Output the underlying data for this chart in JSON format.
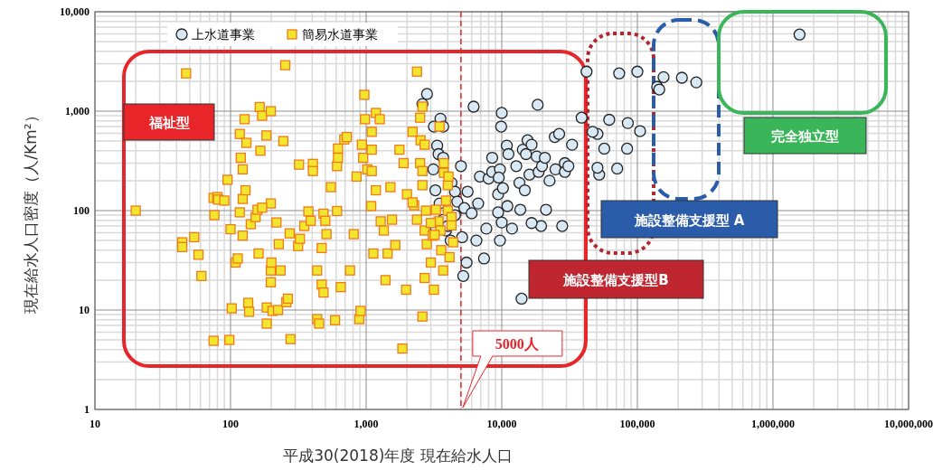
{
  "chart_data": {
    "type": "scatter",
    "xlabel": "平成30(2018)年度 現在給水人口",
    "ylabel": "現在給水人口密度（人/Km²）",
    "log": "xy",
    "grid": true,
    "legend": "top left",
    "xlim": [
      10,
      10000000
    ],
    "ylim": [
      1,
      10000
    ],
    "xticks": [
      {
        "value": 10,
        "label": "10"
      },
      {
        "value": 100,
        "label": "100"
      },
      {
        "value": 1000,
        "label": "1,000"
      },
      {
        "value": 10000,
        "label": "10,000"
      },
      {
        "value": 100000,
        "label": "100,000"
      },
      {
        "value": 1000000,
        "label": "1,000,000"
      },
      {
        "value": 10000000,
        "label": "10,000,000"
      }
    ],
    "yticks": [
      {
        "value": 1,
        "label": "1"
      },
      {
        "value": 10,
        "label": "10"
      },
      {
        "value": 100,
        "label": "100"
      },
      {
        "value": 1000,
        "label": "1,000"
      },
      {
        "value": 10000,
        "label": "10,000"
      }
    ],
    "ref_lines": [
      {
        "axis": "x",
        "value": 5000,
        "label": "5000人",
        "color": "#e8262a",
        "line_style": "dashed"
      }
    ],
    "annotations": [
      "福祉型",
      "施設整備支援型B",
      "施設整備支援型 A",
      "完全独立型"
    ],
    "series": [
      {
        "name": "上水道事業",
        "color": "#d9e8f5",
        "marker": "circle",
        "x": [
          2810,
          2600,
          3530,
          3700,
          3160,
          3340,
          3420,
          3700,
          3130,
          3240,
          3480,
          3700,
          3880,
          4200,
          4000,
          3270,
          4260,
          4520,
          4520,
          4700,
          5100,
          5300,
          5500,
          5200,
          5000,
          5600,
          6000,
          6200,
          6900,
          6700,
          6500,
          7400,
          7700,
          8000,
          8500,
          8500,
          9400,
          9700,
          9400,
          9700,
          9900,
          10000,
          9500,
          10900,
          11200,
          10200,
          11000,
          11900,
          10000,
          13500,
          13700,
          14000,
          12800,
          14300,
          14800,
          15100,
          15500,
          16000,
          16600,
          18100,
          18700,
          19500,
          16600,
          19800,
          20800,
          22500,
          21200,
          24600,
          24900,
          26500,
          29200,
          29200,
          27900,
          31000,
          33000,
          38800,
          42200,
          50800,
          52300,
          62000,
          73400,
          85000,
          104700,
          57000,
          84000,
          50800,
          71000,
          100000,
          140000,
          145000,
          156000,
          213000,
          272000,
          1570000,
          18400,
          46800
        ],
        "values": [
          1490,
          1180,
          840,
          700,
          700,
          450,
          370,
          340,
          260,
          160,
          118,
          81,
          63,
          50,
          70,
          67,
          190,
          90,
          155,
          123,
          54,
          106,
          30,
          22,
          280,
          155,
          94,
          1110,
          220,
          118,
          50,
          33,
          66,
          210,
          340,
          245,
          146,
          260,
          96,
          50,
          700,
          76,
          215,
          450,
          370,
          168,
          111,
          66,
          960,
          190,
          102,
          13,
          280,
          410,
          160,
          370,
          510,
          230,
          460,
          350,
          245,
          70,
          75,
          280,
          340,
          200,
          102,
          550,
          260,
          590,
          300,
          245,
          70,
          280,
          460,
          860,
          2500,
          590,
          230,
          820,
          2400,
          760,
          630,
          420,
          420,
          270,
          265,
          2500,
          1760,
          1650,
          2200,
          2170,
          1950,
          5900,
          1160,
          620
        ]
      },
      {
        "name": "簡易水道事業",
        "color": "#f2e52e",
        "marker": "square",
        "x": [
          20,
          47,
          44,
          44,
          54,
          58,
          61,
          75,
          80,
          76,
          75,
          81,
          90,
          100,
          95,
          98,
          102,
          109,
          117,
          123,
          123,
          113,
          117,
          119,
          131,
          127,
          123,
          129,
          135,
          137,
          141,
          153,
          158,
          161,
          164,
          166,
          171,
          184,
          185,
          185,
          198,
          198,
          198,
          200,
          204,
          218,
          224,
          227,
          234,
          245,
          253,
          258,
          265,
          273,
          277,
          198,
          171,
          315,
          320,
          325,
          350,
          375,
          390,
          405,
          435,
          450,
          470,
          485,
          405,
          435,
          470,
          485,
          510,
          500,
          550,
          590,
          610,
          610,
          620,
          650,
          690,
          620,
          720,
          760,
          810,
          850,
          890,
          910,
          970,
          980,
          930,
          950,
          1020,
          1100,
          1090,
          1180,
          1260,
          1100,
          1100,
          1180,
          1280,
          1350,
          1390,
          1440,
          1130,
          1510,
          1550,
          1640,
          1760,
          1850,
          1970,
          1890,
          2000,
          2260,
          2370,
          2500,
          2520,
          2200,
          2500,
          2600,
          2600,
          2700,
          2700,
          2600,
          2760,
          2800,
          2700,
          2600,
          3000,
          3100,
          3270,
          3420,
          3530,
          3580,
          3700,
          3740,
          3880,
          4000,
          4000,
          4120,
          4260,
          4260,
          4380,
          4050,
          3740,
          3200,
          3000,
          2200,
          2370,
          3480,
          3160
        ],
        "values": [
          100,
          2400,
          48,
          43,
          54,
          36,
          22,
          134,
          137,
          90,
          4.9,
          129,
          126,
          65,
          204,
          5,
          10.4,
          30,
          590,
          131,
          56,
          33,
          96,
          340,
          480,
          830,
          260,
          160,
          11.8,
          9.6,
          73,
          86,
          102,
          37,
          1100,
          400,
          900,
          570,
          10.6,
          7.3,
          118,
          25,
          19,
          30,
          9.8,
          76,
          10,
          46,
          25,
          500,
          2900,
          12,
          13,
          59,
          5.1,
          1000,
          107,
          44,
          290,
          52,
          70,
          98,
          79,
          295,
          8.1,
          7.3,
          42,
          93,
          250,
          25,
          18,
          15,
          58,
          79,
          172,
          7.9,
          280,
          99,
          420,
          17,
          520,
          340,
          550,
          25,
          58,
          220,
          8.1,
          9.8,
          1460,
          830,
          460,
          340,
          260,
          410,
          111,
          960,
          830,
          620,
          250,
          160,
          78,
          63,
          20,
          37,
          37,
          172,
          81,
          45,
          410,
          4.1,
          16,
          300,
          146,
          113,
          2500,
          860,
          510,
          620,
          300,
          250,
          180,
          460,
          21,
          8.6,
          100,
          46,
          63,
          1110,
          30,
          56,
          102,
          78,
          63,
          40,
          25,
          240,
          126,
          100,
          180,
          34,
          86,
          71,
          48,
          220,
          300,
          57,
          75,
          121,
          81,
          700,
          16
        ]
      }
    ]
  }
}
